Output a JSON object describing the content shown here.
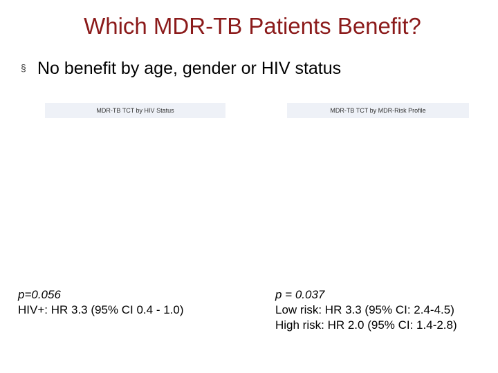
{
  "slide": {
    "title": "Which MDR-TB Patients Benefit?",
    "bullet_marker": "§",
    "bullet": "No benefit by age, gender or HIV status"
  },
  "panels": {
    "left": {
      "header": "MDR-TB TCT by HIV Status",
      "p_value": "p=0.056",
      "lines": [
        "HIV+: HR 3.3 (95% CI 0.4 - 1.0)"
      ]
    },
    "right": {
      "header": "MDR-TB TCT by MDR-Risk Profile",
      "p_value": "p = 0.037",
      "lines": [
        "Low risk: HR 3.3 (95% CI: 2.4-4.5)",
        "High risk: HR 2.0 (95% CI: 1.4-2.8)"
      ]
    }
  },
  "colors": {
    "title": "#8b1a1a",
    "panel_header_bg": "#eef1f7"
  }
}
